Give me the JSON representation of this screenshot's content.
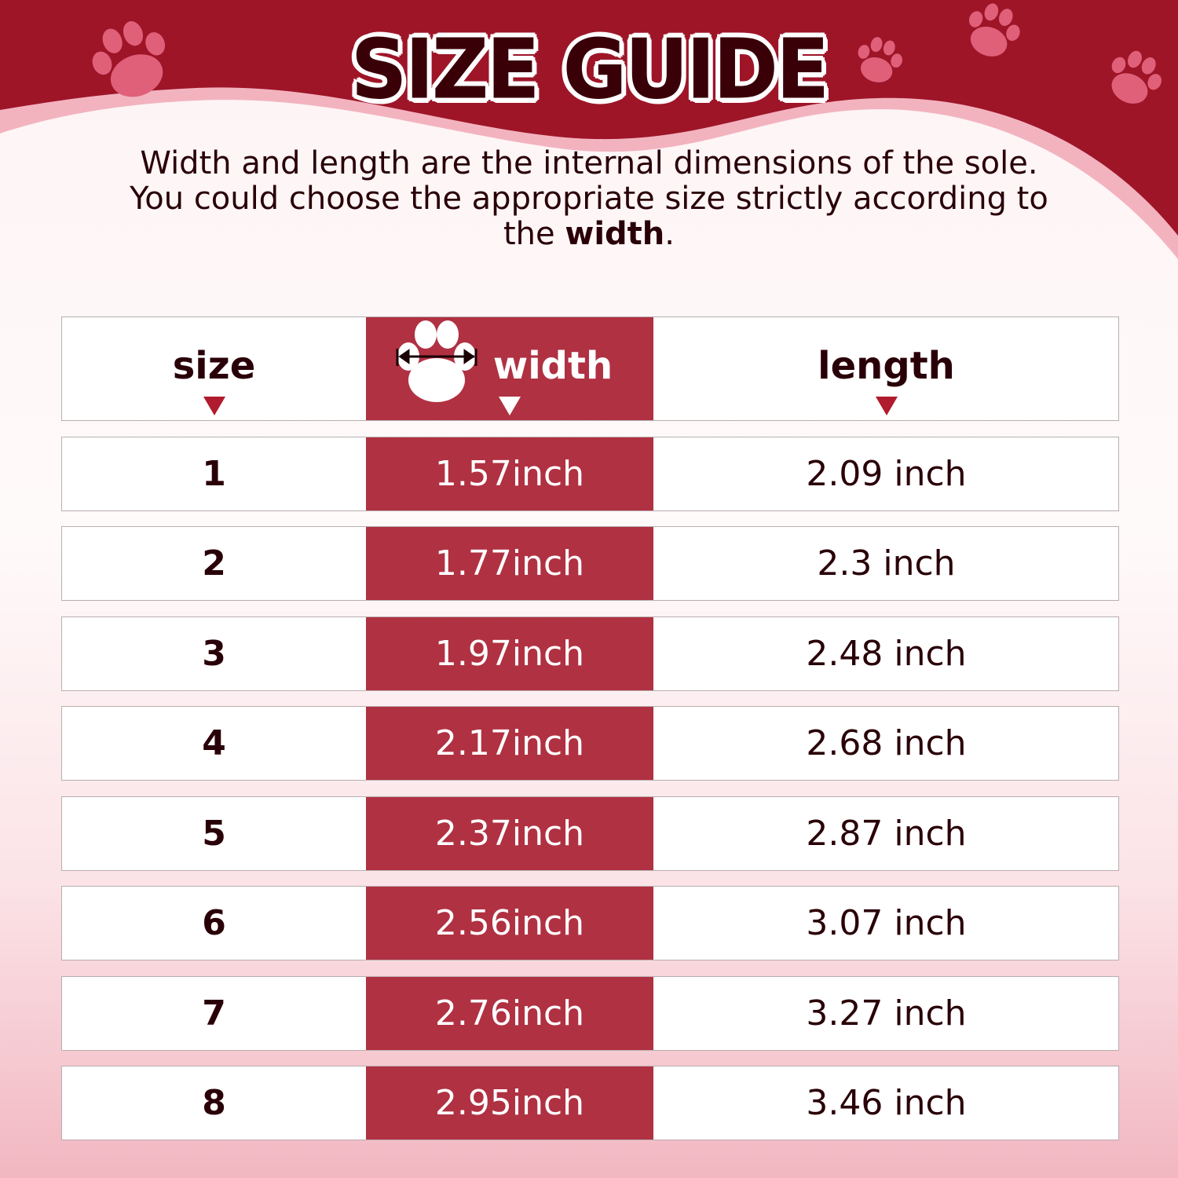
{
  "title": "SIZE GUIDE",
  "description": {
    "text": "Width and length are the internal dimensions of the sole. You could choose the appropriate size strictly according to the ",
    "emphasis": "width",
    "end": "."
  },
  "colors": {
    "header_red": "#9e1528",
    "width_column": "#b03142",
    "text_dark": "#2a0008",
    "paw_pink": "#e0607a"
  },
  "table": {
    "headers": {
      "size": "size",
      "width": "width",
      "length": "length"
    },
    "rows": [
      {
        "size": "1",
        "width": "1.57inch",
        "length": "2.09 inch"
      },
      {
        "size": "2",
        "width": "1.77inch",
        "length": "2.3 inch"
      },
      {
        "size": "3",
        "width": "1.97inch",
        "length": "2.48 inch"
      },
      {
        "size": "4",
        "width": "2.17inch",
        "length": "2.68 inch"
      },
      {
        "size": "5",
        "width": "2.37inch",
        "length": "2.87 inch"
      },
      {
        "size": "6",
        "width": "2.56inch",
        "length": "3.07 inch"
      },
      {
        "size": "7",
        "width": "2.76inch",
        "length": "3.27 inch"
      },
      {
        "size": "8",
        "width": "2.95inch",
        "length": "3.46 inch"
      }
    ]
  }
}
